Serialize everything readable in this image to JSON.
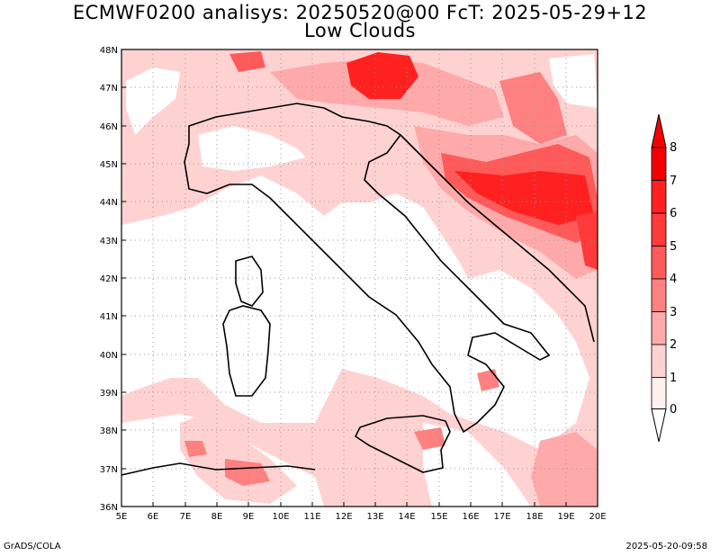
{
  "title_line1": "ECMWF0200 analisys: 20250520@00 FcT: 2025-05-29+12",
  "title_line2": "Low Clouds",
  "map": {
    "lon_labels": [
      "5E",
      "6E",
      "7E",
      "8E",
      "9E",
      "10E",
      "11E",
      "12E",
      "13E",
      "14E",
      "15E",
      "16E",
      "17E",
      "18E",
      "19E",
      "20E"
    ],
    "lat_labels": [
      "36N",
      "37N",
      "38N",
      "39N",
      "40N",
      "41N",
      "42N",
      "43N",
      "44N",
      "45N",
      "46N",
      "47N",
      "48N"
    ],
    "lon_range": [
      5,
      20
    ],
    "lat_range": [
      36,
      48
    ],
    "grid": "dotted"
  },
  "colorbar": {
    "levels": [
      "0",
      "1",
      "2",
      "3",
      "4",
      "5",
      "6",
      "7",
      "8"
    ],
    "colors": [
      "#fff0f0",
      "#ffd2d2",
      "#ffaaaa",
      "#ff8080",
      "#ff5a5a",
      "#ff3a3a",
      "#ff2020",
      "#f50000"
    ]
  },
  "footer": {
    "left": "GrADS/COLA",
    "right": "2025-05-20-09:58"
  }
}
